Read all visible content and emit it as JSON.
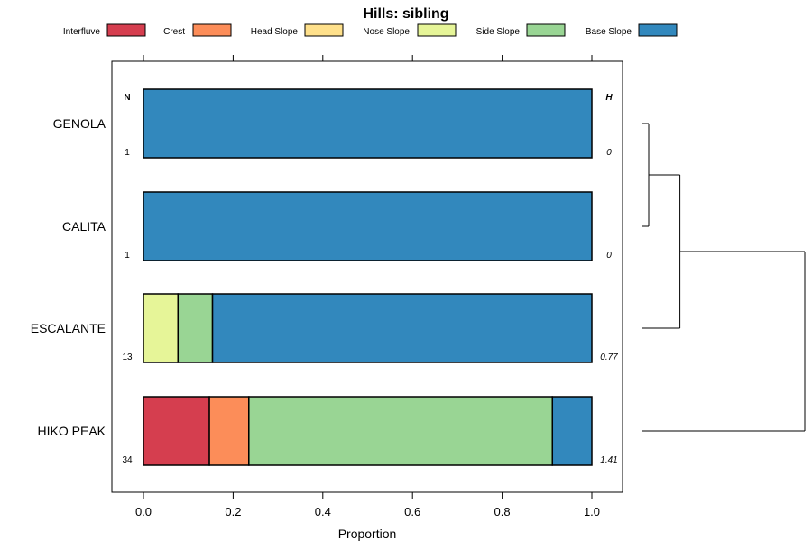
{
  "chart_data": {
    "type": "bar",
    "orientation": "horizontal",
    "stacked": true,
    "title": "Hills: sibling",
    "xlabel": "Proportion",
    "xlim": [
      0,
      1
    ],
    "xticks": [
      "0.0",
      "0.2",
      "0.4",
      "0.6",
      "0.8",
      "1.0"
    ],
    "legend_position": "top",
    "legend": [
      {
        "name": "Interfluve",
        "color": "#D53E4F"
      },
      {
        "name": "Crest",
        "color": "#FC8D59"
      },
      {
        "name": "Head Slope",
        "color": "#FEE08B"
      },
      {
        "name": "Nose Slope",
        "color": "#E6F598"
      },
      {
        "name": "Side Slope",
        "color": "#99D594"
      },
      {
        "name": "Base Slope",
        "color": "#3288BD"
      }
    ],
    "n_header": "N",
    "h_header": "H",
    "categories": [
      "GENOLA",
      "CALITA",
      "ESCALANTE",
      "HIKO PEAK"
    ],
    "n_values": [
      "1",
      "1",
      "13",
      "34"
    ],
    "h_values": [
      "0",
      "0",
      "0.77",
      "1.41"
    ],
    "series": [
      {
        "name": "Interfluve",
        "values": [
          0,
          0,
          0,
          0.147
        ]
      },
      {
        "name": "Crest",
        "values": [
          0,
          0,
          0,
          0.088
        ]
      },
      {
        "name": "Head Slope",
        "values": [
          0,
          0,
          0,
          0
        ]
      },
      {
        "name": "Nose Slope",
        "values": [
          0,
          0,
          0.077,
          0
        ]
      },
      {
        "name": "Side Slope",
        "values": [
          0,
          0,
          0.077,
          0.677
        ]
      },
      {
        "name": "Base Slope",
        "values": [
          1,
          1,
          0.846,
          0.088
        ]
      }
    ],
    "dendrogram": {
      "merges": [
        {
          "left": "GENOLA",
          "right": "CALITA",
          "height": 0.0
        },
        {
          "left": "GENOLA+CALITA",
          "right": "ESCALANTE",
          "height": 0.2
        },
        {
          "left": "GENOLA+CALITA+ESCALANTE",
          "right": "HIKO PEAK",
          "height": 1.0
        }
      ]
    }
  }
}
